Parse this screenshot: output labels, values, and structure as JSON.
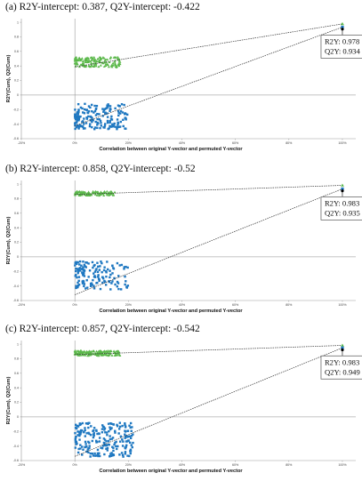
{
  "chart_data": [
    {
      "type": "scatter",
      "panel_label": "(a) R2Y-intercept: 0.387, Q2Y-intercept: -0.422",
      "xlabel": "Correlation between original Y-vector and permuted Y-vector",
      "ylabel": "R2Y(Cum), Q2(Cum)",
      "xlim": [
        -0.2,
        1.05
      ],
      "ylim": [
        -0.6,
        1.05
      ],
      "x_ticks": [
        "-20%",
        "0%",
        "20%",
        "40%",
        "60%",
        "80%",
        "100%"
      ],
      "y_ticks": [
        "-0.6",
        "-0.4",
        "-0.2",
        "0",
        "0.2",
        "0.4",
        "0.6",
        "0.8",
        "1"
      ],
      "colors": {
        "r2": "#5bb84a",
        "q2": "#1f78c1",
        "original": "#000000",
        "regression": "#333333"
      },
      "r2y_intercept": 0.387,
      "q2y_intercept": -0.422,
      "r2_cluster": {
        "x_range": [
          0.0,
          0.17
        ],
        "y_range": [
          0.38,
          0.52
        ],
        "count": 150
      },
      "q2_cluster": {
        "x_range": [
          0.0,
          0.2
        ],
        "y_range": [
          -0.47,
          -0.12
        ],
        "count": 180
      },
      "original": {
        "x": 1.0,
        "r2y": 0.978,
        "q2y": 0.934
      },
      "callout": {
        "r2y_label": "R2Y: 0.978",
        "q2y_label": "Q2Y: 0.934"
      },
      "grid": false,
      "legend": "none"
    },
    {
      "type": "scatter",
      "panel_label": "(b) R2Y-intercept: 0.858, Q2Y-intercept: -0.52",
      "xlabel": "Correlation between original Y-vector and permuted Y-vector",
      "ylabel": "R2Y(Cum), Q2(Cum)",
      "xlim": [
        -0.2,
        1.05
      ],
      "ylim": [
        -0.6,
        1.05
      ],
      "x_ticks": [
        "-20%",
        "0%",
        "20%",
        "40%",
        "60%",
        "80%",
        "100%"
      ],
      "y_ticks": [
        "-0.6",
        "-0.4",
        "-0.2",
        "0",
        "0.2",
        "0.4",
        "0.6",
        "0.8",
        "1"
      ],
      "colors": {
        "r2": "#5bb84a",
        "q2": "#1f78c1",
        "original": "#000000",
        "regression": "#333333"
      },
      "r2y_intercept": 0.858,
      "q2y_intercept": -0.52,
      "r2_cluster": {
        "x_range": [
          0.0,
          0.15
        ],
        "y_range": [
          0.84,
          0.9
        ],
        "count": 110
      },
      "q2_cluster": {
        "x_range": [
          0.0,
          0.2
        ],
        "y_range": [
          -0.45,
          -0.06
        ],
        "count": 150
      },
      "original": {
        "x": 1.0,
        "r2y": 0.983,
        "q2y": 0.935
      },
      "callout": {
        "r2y_label": "R2Y: 0.983",
        "q2y_label": "Q2Y: 0.935"
      },
      "grid": false,
      "legend": "none"
    },
    {
      "type": "scatter",
      "panel_label": "(c) R2Y-intercept: 0.857, Q2Y-intercept: -0.542",
      "xlabel": "Correlation between original Y-vector and permuted Y-vector",
      "ylabel": "R2Y(Cum), Q2(Cum)",
      "xlim": [
        -0.2,
        1.05
      ],
      "ylim": [
        -0.6,
        1.05
      ],
      "x_ticks": [
        "-20%",
        "0%",
        "20%",
        "40%",
        "60%",
        "80%",
        "100%"
      ],
      "y_ticks": [
        "-0.6",
        "-0.4",
        "-0.2",
        "0",
        "0.2",
        "0.4",
        "0.6",
        "0.8",
        "1"
      ],
      "colors": {
        "r2": "#5bb84a",
        "q2": "#1f78c1",
        "original": "#000000",
        "regression": "#333333"
      },
      "r2y_intercept": 0.857,
      "q2y_intercept": -0.542,
      "r2_cluster": {
        "x_range": [
          0.0,
          0.17
        ],
        "y_range": [
          0.84,
          0.91
        ],
        "count": 150
      },
      "q2_cluster": {
        "x_range": [
          0.0,
          0.22
        ],
        "y_range": [
          -0.55,
          -0.08
        ],
        "count": 220
      },
      "original": {
        "x": 1.0,
        "r2y": 0.983,
        "q2y": 0.949
      },
      "callout": {
        "r2y_label": "R2Y: 0.983",
        "q2y_label": "Q2Y: 0.949"
      },
      "grid": false,
      "legend": "none"
    }
  ]
}
